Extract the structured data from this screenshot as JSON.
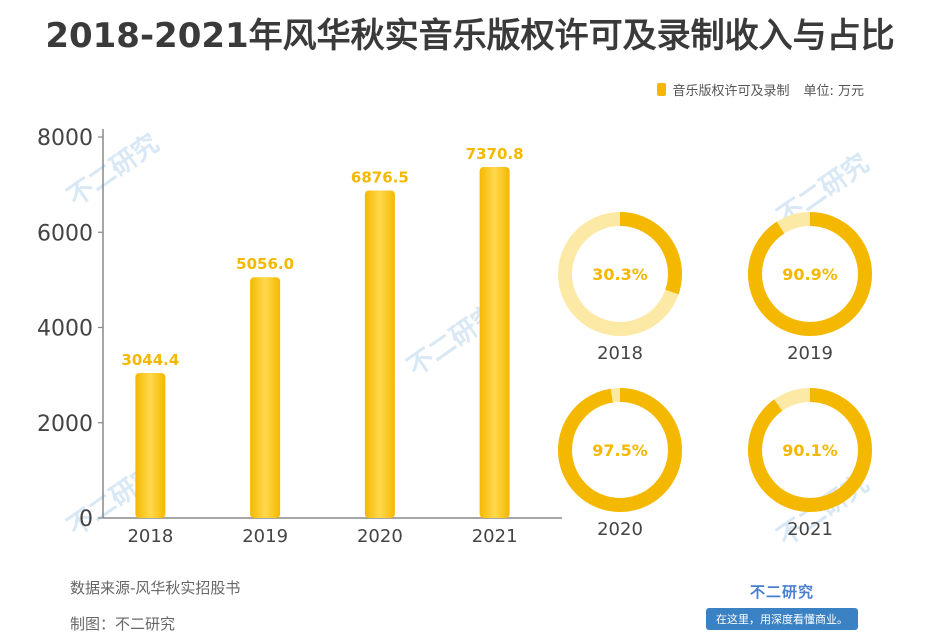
{
  "title": "2018-2021年风华秋实音乐版权许可及录制收入与占比",
  "legend": {
    "series_label": "音乐版权许可及录制",
    "unit": "单位: 万元"
  },
  "colors": {
    "bar": "#f5b800",
    "bar_light": "#ffd84d",
    "ring": "#f5b800",
    "ring_track": "#fde9a6",
    "label": "#f5b800",
    "axis": "#888888"
  },
  "chart_data": [
    {
      "type": "bar",
      "categories": [
        "2018",
        "2019",
        "2020",
        "2021"
      ],
      "series": [
        {
          "name": "音乐版权许可及录制",
          "values": [
            3044.4,
            5056.0,
            6876.5,
            7370.8
          ]
        }
      ],
      "value_labels": [
        "3044.4",
        "5056.0",
        "6876.5",
        "7370.8"
      ],
      "y_ticks": [
        "0",
        "2000",
        "4000",
        "6000",
        "8000"
      ],
      "ylim": [
        0,
        8000
      ],
      "grid": false
    },
    {
      "type": "pie",
      "style": "donut",
      "items": [
        {
          "label": "2018",
          "value": 30.3,
          "display": "30.3%"
        },
        {
          "label": "2019",
          "value": 90.9,
          "display": "90.9%"
        },
        {
          "label": "2020",
          "value": 97.5,
          "display": "97.5%"
        },
        {
          "label": "2021",
          "value": 90.1,
          "display": "90.1%"
        }
      ]
    }
  ],
  "footer": {
    "source": "数据来源-风华秋实招股书",
    "credit": "制图：不二研究"
  },
  "brand": {
    "name": "不二研究",
    "slogan": "在这里，用深度看懂商业。"
  }
}
